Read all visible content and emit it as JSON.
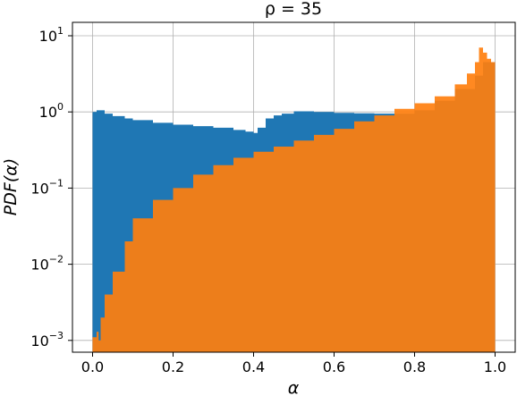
{
  "chart_data": {
    "type": "histogram",
    "title": "ρ = 35",
    "xlabel": "α",
    "ylabel": "PDF(α)",
    "xlim": [
      -0.05,
      1.05
    ],
    "ylim": [
      0.0007,
      15
    ],
    "yscale": "log",
    "grid": true,
    "xticks": [
      {
        "value": 0.0,
        "label": "0.0"
      },
      {
        "value": 0.2,
        "label": "0.2"
      },
      {
        "value": 0.4,
        "label": "0.4"
      },
      {
        "value": 0.6,
        "label": "0.6"
      },
      {
        "value": 0.8,
        "label": "0.8"
      },
      {
        "value": 1.0,
        "label": "1.0"
      }
    ],
    "yticks": [
      {
        "value": 0.001,
        "base": "10",
        "exp": "−3"
      },
      {
        "value": 0.01,
        "base": "10",
        "exp": "−2"
      },
      {
        "value": 0.1,
        "base": "10",
        "exp": "−1"
      },
      {
        "value": 1,
        "base": "10",
        "exp": "0"
      },
      {
        "value": 10,
        "base": "10",
        "exp": "1"
      }
    ],
    "series": [
      {
        "color": "#1f77b4",
        "x": [
          0.0,
          0.01,
          0.03,
          0.05,
          0.08,
          0.1,
          0.15,
          0.2,
          0.25,
          0.3,
          0.35,
          0.38,
          0.4,
          0.41,
          0.43,
          0.45,
          0.47,
          0.5,
          0.55,
          0.6,
          0.65,
          0.7,
          0.75,
          0.8,
          0.85,
          0.9,
          0.95,
          0.97,
          1.0
        ],
        "y": [
          1.0,
          1.05,
          0.95,
          0.88,
          0.82,
          0.78,
          0.72,
          0.68,
          0.65,
          0.62,
          0.58,
          0.55,
          0.53,
          0.62,
          0.82,
          0.9,
          0.95,
          1.02,
          1.0,
          0.97,
          0.96,
          0.95,
          0.95,
          1.05,
          1.4,
          2.0,
          3.0,
          4.5,
          1.1
        ]
      },
      {
        "color": "#ff7f0e",
        "x": [
          0.0,
          0.01,
          0.015,
          0.02,
          0.03,
          0.05,
          0.08,
          0.1,
          0.15,
          0.2,
          0.25,
          0.3,
          0.35,
          0.4,
          0.45,
          0.5,
          0.55,
          0.6,
          0.65,
          0.7,
          0.75,
          0.8,
          0.85,
          0.9,
          0.93,
          0.95,
          0.96,
          0.97,
          0.98,
          0.99,
          1.0
        ],
        "y": [
          0.0011,
          0.0013,
          0.001,
          0.002,
          0.004,
          0.008,
          0.02,
          0.04,
          0.07,
          0.1,
          0.15,
          0.2,
          0.25,
          0.3,
          0.35,
          0.42,
          0.5,
          0.6,
          0.75,
          0.9,
          1.1,
          1.3,
          1.6,
          2.3,
          3.2,
          4.5,
          7.0,
          6.0,
          5.0,
          4.5,
          3.0
        ]
      }
    ]
  }
}
